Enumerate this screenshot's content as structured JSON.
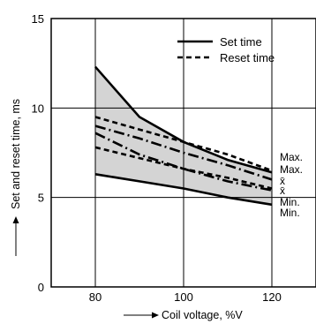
{
  "chart_data": {
    "type": "line",
    "xlabel": "Coil voltage, %V",
    "ylabel": "Set and reset time, ms",
    "xlim": [
      70,
      130
    ],
    "ylim": [
      0,
      15
    ],
    "x_ticks": [
      "80",
      "100",
      "120"
    ],
    "y_ticks": [
      "0",
      "5",
      "10",
      "15"
    ],
    "grid": true,
    "legend_placement": "top-right",
    "legend": [
      {
        "label": "Set time",
        "style": "solid"
      },
      {
        "label": "Reset time",
        "style": "dashed"
      }
    ],
    "series": [
      {
        "kind": "set",
        "stat": "Max.",
        "style": "solid",
        "x": [
          80,
          90,
          100,
          110,
          120
        ],
        "y": [
          12.3,
          9.5,
          8.1,
          7.1,
          6.4
        ]
      },
      {
        "kind": "set",
        "stat": "x̄",
        "style": "dashdot",
        "x": [
          80,
          90,
          100,
          110,
          120
        ],
        "y": [
          8.6,
          7.4,
          6.6,
          5.9,
          5.4
        ]
      },
      {
        "kind": "set",
        "stat": "Min.",
        "style": "solid",
        "x": [
          80,
          90,
          100,
          110,
          120
        ],
        "y": [
          6.3,
          5.9,
          5.5,
          5.0,
          4.6
        ]
      },
      {
        "kind": "reset",
        "stat": "Max.",
        "style": "dashed",
        "x": [
          80,
          90,
          100,
          110,
          120
        ],
        "y": [
          9.5,
          8.8,
          8.1,
          7.4,
          6.5
        ]
      },
      {
        "kind": "reset",
        "stat": "x̄",
        "style": "dashdot",
        "x": [
          80,
          90,
          100,
          110,
          120
        ],
        "y": [
          9.0,
          8.3,
          7.5,
          6.8,
          6.0
        ]
      },
      {
        "kind": "reset",
        "stat": "Min.",
        "style": "dashed",
        "x": [
          80,
          90,
          100,
          110,
          120
        ],
        "y": [
          7.8,
          7.2,
          6.6,
          6.1,
          5.5
        ]
      }
    ],
    "end_labels": [
      "Max.",
      "Max.",
      "x̄",
      "x̄",
      "Min.",
      "Min."
    ]
  },
  "colors": {
    "band_fill": "#d4d4d4",
    "line": "#000000",
    "background": "#ffffff"
  }
}
